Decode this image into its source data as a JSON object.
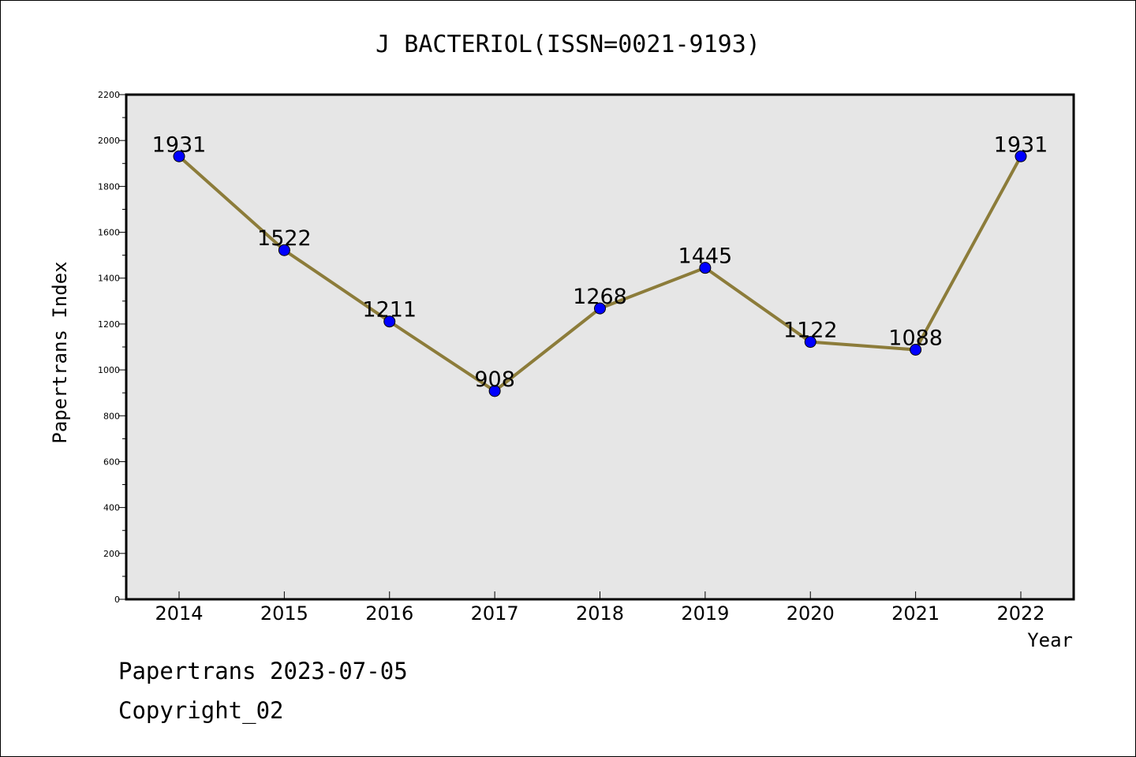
{
  "chart_data": {
    "type": "line",
    "title": "J BACTERIOL(ISSN=0021-9193)",
    "xlabel": "Year",
    "ylabel": "Papertrans Index",
    "categories": [
      "2014",
      "2015",
      "2016",
      "2017",
      "2018",
      "2019",
      "2020",
      "2021",
      "2022"
    ],
    "series": [
      {
        "values": [
          1931,
          1522,
          1211,
          908,
          1268,
          1445,
          1122,
          1088,
          1931
        ],
        "line_color": "#8c7c3a",
        "marker_color": "#0000ff"
      }
    ],
    "data_labels": [
      "1931",
      "1522",
      "1211",
      "908",
      "1268",
      "1445",
      "1122",
      "1088",
      "1931"
    ],
    "ylim": [
      0,
      2200
    ],
    "yticks": [
      0,
      200,
      400,
      600,
      800,
      1000,
      1200,
      1400,
      1600,
      1800,
      2000,
      2200
    ],
    "grid": false,
    "plot_background": "#e6e6e6"
  },
  "footer": {
    "line1": "Papertrans 2023-07-05",
    "line2": "Copyright_02"
  }
}
